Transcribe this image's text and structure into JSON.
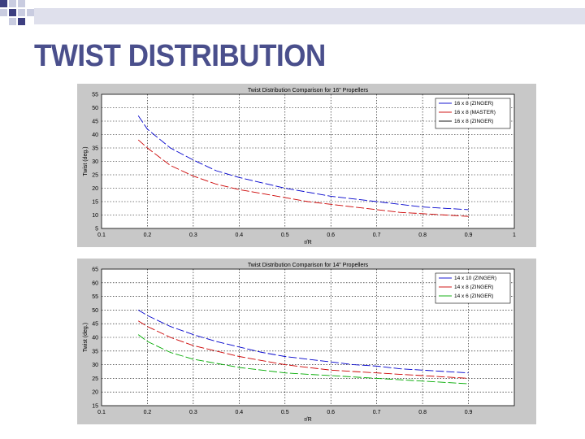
{
  "slide": {
    "title": "TWIST DISTRIBUTION"
  },
  "colors": {
    "title": "#4a4f8c",
    "deco_dark": "#3d3f80",
    "deco_light": "#c9cce0",
    "band_light": "#dfe0ec"
  },
  "chart_data": [
    {
      "type": "line",
      "title": "Twist Distribution Comparison for 16\" Propellers",
      "xlabel": "r/R",
      "ylabel": "Twist (deg.)",
      "xlim": [
        0.1,
        1.0
      ],
      "ylim": [
        5,
        55
      ],
      "xticks": [
        "0.1",
        "0.2",
        "0.3",
        "0.4",
        "0.5",
        "0.6",
        "0.7",
        "0.8",
        "0.9",
        "1"
      ],
      "yticks": [
        "5",
        "10",
        "15",
        "20",
        "25",
        "30",
        "35",
        "40",
        "45",
        "50",
        "55"
      ],
      "grid": true,
      "legend_position": "top-right",
      "series": [
        {
          "name": "16 x 8 (ZINGER)",
          "color": "#0000cc",
          "dash": "long",
          "x": [
            0.18,
            0.2,
            0.25,
            0.3,
            0.35,
            0.4,
            0.45,
            0.5,
            0.55,
            0.6,
            0.65,
            0.7,
            0.75,
            0.8,
            0.85,
            0.9
          ],
          "y": [
            47,
            42,
            35,
            30.5,
            26.5,
            24,
            22,
            20,
            18.5,
            17,
            16,
            15,
            14,
            13,
            12.5,
            12
          ]
        },
        {
          "name": "16 x 8 (MASTER)",
          "color": "#cc0000",
          "dash": "long",
          "x": [
            0.18,
            0.2,
            0.25,
            0.3,
            0.35,
            0.4,
            0.45,
            0.5,
            0.55,
            0.6,
            0.65,
            0.7,
            0.75,
            0.8,
            0.85,
            0.9
          ],
          "y": [
            38,
            35,
            28.5,
            24.5,
            21.5,
            19.5,
            18,
            16.5,
            15,
            14,
            13,
            12,
            11,
            10.5,
            10,
            9.5
          ]
        },
        {
          "name": "16 x 8 (ZINGER)",
          "color": "#000000",
          "dash": "long",
          "x": [],
          "y": []
        }
      ]
    },
    {
      "type": "line",
      "title": "Twist Distribution Comparison for 14\" Propellers",
      "xlabel": "r/R",
      "ylabel": "Twist (deg.)",
      "xlim": [
        0.1,
        1.0
      ],
      "ylim": [
        15,
        65
      ],
      "xticks": [
        "0.1",
        "0.2",
        "0.3",
        "0.4",
        "0.5",
        "0.6",
        "0.7",
        "0.8",
        "0.9",
        ""
      ],
      "yticks": [
        "15",
        "20",
        "25",
        "30",
        "35",
        "40",
        "45",
        "50",
        "55",
        "60",
        "65"
      ],
      "grid": true,
      "legend_position": "top-right",
      "series": [
        {
          "name": "14 x 10 (ZINGER)",
          "color": "#0000cc",
          "dash": "long",
          "x": [
            0.18,
            0.2,
            0.25,
            0.3,
            0.35,
            0.4,
            0.45,
            0.5,
            0.55,
            0.6,
            0.65,
            0.7,
            0.75,
            0.8,
            0.85,
            0.9
          ],
          "y": [
            50,
            48,
            44,
            41,
            38.5,
            36.5,
            34.5,
            33,
            32,
            31,
            30,
            29.5,
            28.5,
            28,
            27.5,
            27
          ]
        },
        {
          "name": "14 x 8 (ZINGER)",
          "color": "#cc0000",
          "dash": "long",
          "x": [
            0.18,
            0.2,
            0.25,
            0.3,
            0.35,
            0.4,
            0.45,
            0.5,
            0.55,
            0.6,
            0.65,
            0.7,
            0.75,
            0.8,
            0.85,
            0.9
          ],
          "y": [
            46,
            44,
            40,
            37,
            35,
            33,
            31.5,
            30,
            29,
            28,
            27.5,
            27,
            26.5,
            26,
            25.5,
            25
          ]
        },
        {
          "name": "14 x 6 (ZINGER)",
          "color": "#00aa00",
          "dash": "long",
          "x": [
            0.18,
            0.2,
            0.25,
            0.3,
            0.35,
            0.4,
            0.45,
            0.5,
            0.55,
            0.6,
            0.65,
            0.7,
            0.75,
            0.8,
            0.85,
            0.9
          ],
          "y": [
            41,
            38.5,
            34.5,
            32,
            30.5,
            29,
            28,
            27,
            26.5,
            26,
            25.5,
            25,
            24.5,
            24,
            23.5,
            23
          ]
        }
      ]
    }
  ]
}
